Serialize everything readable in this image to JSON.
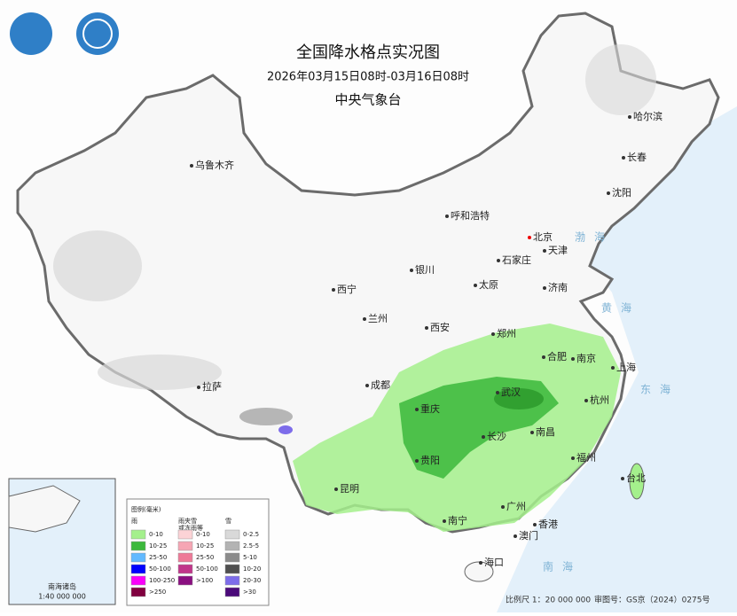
{
  "header": {
    "title": "全国降水格点实况图",
    "time": "2026年03月15日08时-03月16日08时",
    "agency": "中央气象台"
  },
  "cities": [
    "乌鲁木齐",
    "哈尔滨",
    "长春",
    "沈阳",
    "呼和浩特",
    "北京",
    "天津",
    "石家庄",
    "银川",
    "太原",
    "济南",
    "西宁",
    "兰州",
    "西安",
    "郑州",
    "合肥",
    "南京",
    "上海",
    "拉萨",
    "成都",
    "武汉",
    "杭州",
    "重庆",
    "长沙",
    "南昌",
    "贵阳",
    "福州",
    "台北",
    "昆明",
    "南宁",
    "广州",
    "香港",
    "澳门",
    "海口"
  ],
  "seas": [
    "渤海",
    "黄海",
    "东海",
    "南海"
  ],
  "legend": {
    "title": "图例(毫米)",
    "groups": [
      {
        "name": "雨",
        "items": [
          {
            "label": "0-10",
            "color": "#a4f08c"
          },
          {
            "label": "10-25",
            "color": "#3cb93c"
          },
          {
            "label": "25-50",
            "color": "#62b9ff"
          },
          {
            "label": "50-100",
            "color": "#0000fe"
          },
          {
            "label": "100-250",
            "color": "#f900f9"
          },
          {
            "label": ">250",
            "color": "#80003f"
          }
        ]
      },
      {
        "name": "雨夹雪",
        "note": "或冻雨等",
        "items": [
          {
            "label": "0-10",
            "color": "#fcd3d6"
          },
          {
            "label": "10-25",
            "color": "#f6a6b4"
          },
          {
            "label": "25-50",
            "color": "#ee7a98"
          },
          {
            "label": "50-100",
            "color": "#c0368a"
          },
          {
            "label": ">100",
            "color": "#8a0f80"
          }
        ]
      },
      {
        "name": "雪",
        "items": [
          {
            "label": "0-2.5",
            "color": "#d9d9d9"
          },
          {
            "label": "2.5-5",
            "color": "#b3b3b3"
          },
          {
            "label": "5-10",
            "color": "#8b8b8b"
          },
          {
            "label": "10-20",
            "color": "#4f4f4f"
          },
          {
            "label": "20-30",
            "color": "#7d6cea"
          },
          {
            "label": ">30",
            "color": "#4b0a7a"
          }
        ]
      }
    ]
  },
  "inset": {
    "title": "南海诸岛",
    "scale": "1:40 000 000"
  },
  "footer": {
    "scale": "比例尺 1：20 000 000",
    "approval": "审图号：GS京（2024）0275号"
  }
}
